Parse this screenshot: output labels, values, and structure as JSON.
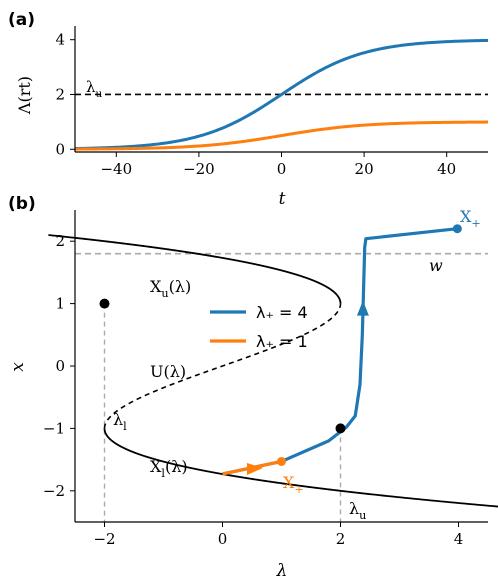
{
  "chart_data": [
    {
      "type": "line",
      "panel_label": "(a)",
      "xlabel": "t",
      "ylabel": "Λ(rt)",
      "xlim": [
        -50,
        50
      ],
      "ylim": [
        -0.1,
        4.5
      ],
      "xticks": [
        -40,
        -20,
        0,
        20,
        40
      ],
      "xtick_labels": [
        "−40",
        "−20",
        "0",
        "20",
        "40"
      ],
      "yticks": [
        0,
        2,
        4
      ],
      "ytick_labels": [
        "0",
        "2",
        "4"
      ],
      "series": [
        {
          "color": "#1f77b4",
          "form": "4 / (1 + exp(-0.1 t))",
          "lower": 0,
          "upper": 4
        },
        {
          "color": "#ff7f0e",
          "form": "1 / (1 + exp(-0.1 t))",
          "lower": 0,
          "upper": 1
        }
      ],
      "hline": {
        "y": 2,
        "style": "dashed",
        "color": "#000000"
      },
      "annotation": "λ_u"
    },
    {
      "type": "line",
      "panel_label": "(b)",
      "xlabel": "λ",
      "ylabel": "x",
      "xlim": [
        -2.5,
        4.5
      ],
      "ylim": [
        -2.5,
        2.5
      ],
      "xticks": [
        -2,
        0,
        2,
        4
      ],
      "xtick_labels": [
        "−2",
        "0",
        "2",
        "4"
      ],
      "yticks": [
        -2,
        -1,
        0,
        1,
        2
      ],
      "ytick_labels": [
        "−2",
        "−1",
        "0",
        "1",
        "2"
      ],
      "critical_manifold": "λ = 3x − x³",
      "fold_points": [
        {
          "lambda": -2,
          "x": 1
        },
        {
          "lambda": 2,
          "x": -1
        }
      ],
      "hline": {
        "y": 1.8,
        "style": "dashed",
        "color": "#aaaaaa"
      },
      "vlines": [
        {
          "x": -2,
          "style": "dashed",
          "color": "#aaaaaa"
        },
        {
          "x": 2,
          "style": "dashed",
          "color": "#aaaaaa"
        }
      ],
      "legend": {
        "placement": "center",
        "entries": [
          {
            "label": "λ₊ = 4",
            "color": "#1f77b4"
          },
          {
            "label": "λ₊ = 1",
            "color": "#ff7f0e"
          }
        ]
      },
      "trajectories": [
        {
          "color": "#1f77b4",
          "points": [
            [
              0,
              -1.73
            ],
            [
              1.0,
              -1.53
            ],
            [
              1.8,
              -1.2
            ],
            [
              2.1,
              -0.98
            ],
            [
              2.25,
              -0.8
            ],
            [
              2.33,
              -0.3
            ],
            [
              2.37,
              0.5
            ],
            [
              2.39,
              1.2
            ],
            [
              2.41,
              1.9
            ],
            [
              2.43,
              2.04
            ],
            [
              3.2,
              2.12
            ],
            [
              3.98,
              2.2
            ]
          ],
          "endpoint": {
            "lambda": 3.98,
            "x": 2.2
          },
          "arrow": {
            "lambda": 2.38,
            "x": 0.92,
            "direction": "up"
          }
        },
        {
          "color": "#ff7f0e",
          "points": [
            [
              0,
              -1.73
            ],
            [
              0.5,
              -1.63
            ],
            [
              1.0,
              -1.53
            ]
          ],
          "endpoint": {
            "lambda": 1.0,
            "x": -1.53
          },
          "arrow": {
            "lambda": 0.55,
            "x": -1.65,
            "direction": "right"
          }
        }
      ],
      "labels": {
        "Xu": "X_u(λ)",
        "U": "U(λ)",
        "Xl": "X_l(λ)",
        "lambda_l": "λ_l",
        "lambda_u": "λ_u",
        "w": "w",
        "Xplus_blue": "X₊",
        "Xplus_orange": "X₊"
      }
    }
  ]
}
